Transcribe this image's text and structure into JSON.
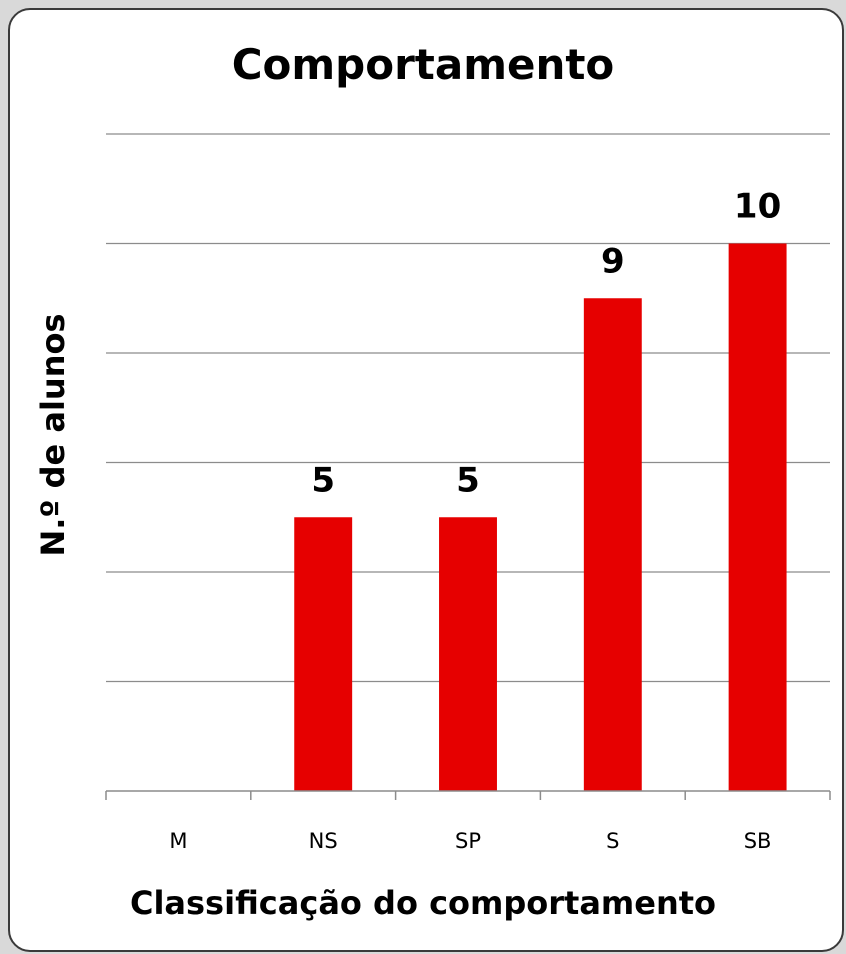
{
  "chart_data": {
    "type": "bar",
    "title": "Comportamento",
    "xlabel": "Classificação do comportamento",
    "ylabel": "N.º de alunos",
    "categories": [
      "M",
      "NS",
      "SP",
      "S",
      "SB"
    ],
    "values": [
      0,
      5,
      5,
      9,
      10
    ],
    "data_labels": [
      "",
      "5",
      "5",
      "9",
      "10"
    ],
    "ylim": [
      0,
      12
    ],
    "ytick_step": 2,
    "grid": true,
    "bar_color": "#e60000"
  }
}
